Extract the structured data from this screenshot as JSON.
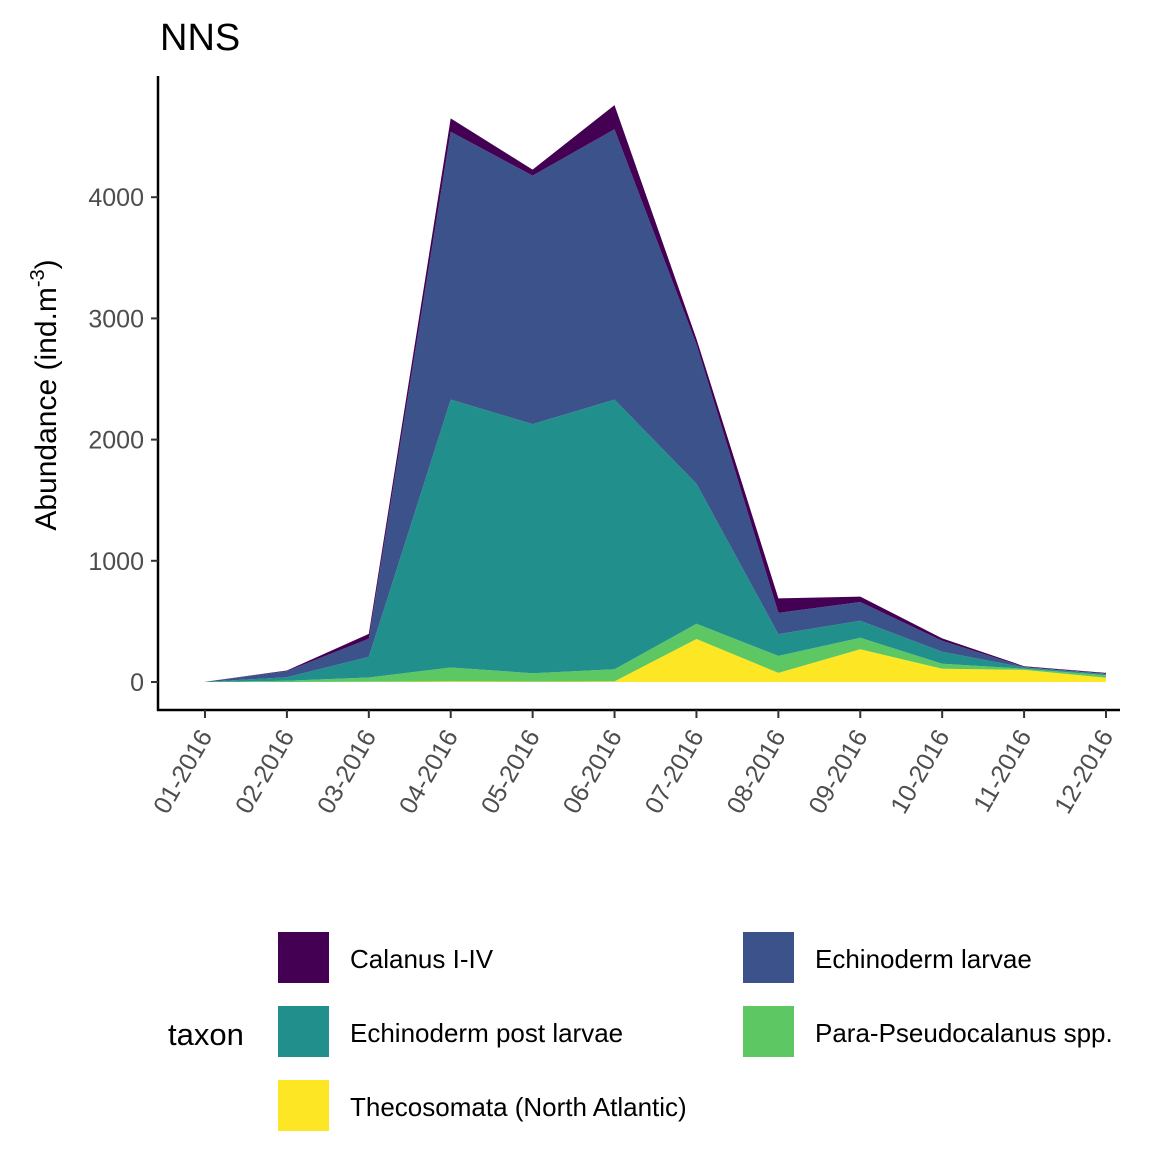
{
  "chart_data": {
    "type": "area",
    "stacked": true,
    "title": "NNS",
    "xlabel": "",
    "ylabel": "Abundance (ind.m",
    "ylabel_superscript": "-3",
    "ylabel_close": ")",
    "ylim": [
      0,
      4900
    ],
    "yticks": [
      0,
      1000,
      2000,
      3000,
      4000
    ],
    "ytick_labels": [
      "0",
      "1000",
      "2000",
      "3000",
      "4000"
    ],
    "categories": [
      "01-2016",
      "02-2016",
      "03-2016",
      "04-2016",
      "05-2016",
      "06-2016",
      "07-2016",
      "08-2016",
      "09-2016",
      "10-2016",
      "11-2016",
      "12-2016"
    ],
    "legend_title": "taxon",
    "legend_position": "bottom",
    "grid": false,
    "series": [
      {
        "name": "Thecosomata (North Atlantic)",
        "color": "#FDE725",
        "values": [
          0,
          0,
          2,
          5,
          3,
          5,
          355,
          75,
          270,
          110,
          100,
          35
        ]
      },
      {
        "name": "Para-Pseudocalanus spp.",
        "color": "#5DC863",
        "values": [
          0,
          10,
          35,
          115,
          70,
          100,
          125,
          140,
          95,
          40,
          10,
          20
        ]
      },
      {
        "name": "Echinoderm post larvae",
        "color": "#21908C",
        "values": [
          1,
          30,
          170,
          2210,
          2055,
          2225,
          1155,
          180,
          140,
          100,
          10,
          10
        ]
      },
      {
        "name": "Echinoderm larvae",
        "color": "#3B528B",
        "values": [
          1,
          50,
          150,
          2210,
          2050,
          2230,
          1150,
          175,
          155,
          90,
          5,
          5
        ]
      },
      {
        "name": "Calanus I-IV",
        "color": "#440154",
        "values": [
          0,
          5,
          40,
          110,
          50,
          200,
          45,
          120,
          45,
          20,
          5,
          5
        ]
      }
    ],
    "legend_order": [
      "Calanus I-IV",
      "Echinoderm larvae",
      "Echinoderm post larvae",
      "Para-Pseudocalanus spp.",
      "Thecosomata (North Atlantic)"
    ]
  }
}
